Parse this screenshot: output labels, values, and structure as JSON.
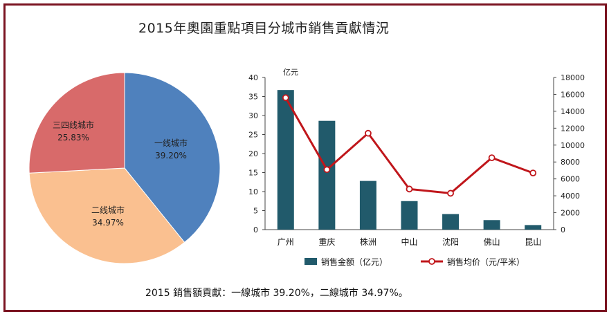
{
  "title": "2015年奧園重點項目分城市銷售貢獻情況",
  "caption": "2015 銷售額貢獻：一線城市 39.20%，二線城市 34.97%。",
  "chart_data": [
    {
      "type": "pie",
      "slices": [
        {
          "label": "一线城市",
          "value": 39.2,
          "display": "39.20%",
          "color": "#4f81bd"
        },
        {
          "label": "二线城市",
          "value": 34.97,
          "display": "34.97%",
          "color": "#fac090"
        },
        {
          "label": "三四线城市",
          "value": 25.83,
          "display": "25.83%",
          "color": "#d86a6a"
        }
      ]
    },
    {
      "type": "bar",
      "unit_label": "亿元",
      "categories": [
        "广州",
        "重庆",
        "株洲",
        "中山",
        "沈阳",
        "佛山",
        "昆山"
      ],
      "series": [
        {
          "name": "销售金额（亿元）",
          "type": "bar",
          "axis": "left",
          "color": "#215a6b",
          "values": [
            36.7,
            28.6,
            12.8,
            7.5,
            4.1,
            2.5,
            1.2
          ]
        },
        {
          "name": "销售均价（元/平米）",
          "type": "line",
          "axis": "right",
          "color": "#c0161b",
          "values": [
            15600,
            7100,
            11400,
            4800,
            4300,
            8500,
            6700
          ]
        }
      ],
      "ylim_left": [
        0,
        40
      ],
      "yticks_left": [
        0,
        5,
        10,
        15,
        20,
        25,
        30,
        35,
        40
      ],
      "ylim_right": [
        0,
        18000
      ],
      "yticks_right": [
        0,
        2000,
        4000,
        6000,
        8000,
        10000,
        12000,
        14000,
        16000,
        18000
      ],
      "legend_position": "bottom",
      "grid": false
    }
  ]
}
